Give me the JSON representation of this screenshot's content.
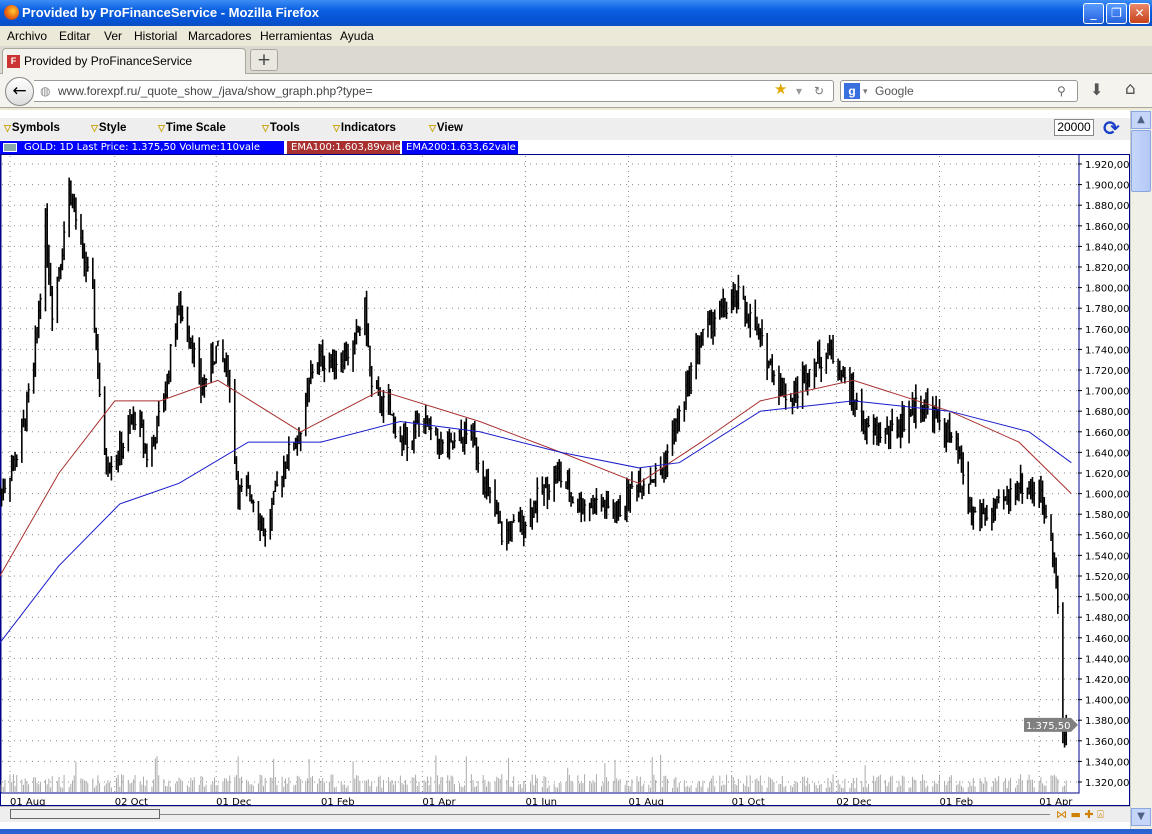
{
  "window": {
    "title": "Provided by ProFinanceService - Mozilla Firefox"
  },
  "menu": [
    "Archivo",
    "Editar",
    "Ver",
    "Historial",
    "Marcadores",
    "Herramientas",
    "Ayuda"
  ],
  "tab": {
    "label": "Provided by ProFinanceService"
  },
  "nav": {
    "url": "www.forexpf.ru/_quote_show_/java/show_graph.php?type=",
    "search_placeholder": "Google"
  },
  "toolbar": {
    "items": [
      "Symbols",
      "Style",
      "Time Scale",
      "Tools",
      "Indicators",
      "View"
    ],
    "zoom_value": "20000"
  },
  "legend": {
    "main": "GOLD: 1D Last Price: 1.375,50 Volume:110vale",
    "ema100": "EMA100:1.603,89vale",
    "ema200": "EMA200:1.633,62vale"
  },
  "colors": {
    "price": "#000000",
    "ema100": "#a83030",
    "ema200": "#1a1acc",
    "legend_bg": "#0000ff"
  },
  "chart_data": {
    "type": "line",
    "title": "GOLD: 1D",
    "last_price_label": "1.375,50",
    "ylim": [
      1320,
      1920
    ],
    "y_ticks": [
      "1.920,00",
      "1.900,00",
      "1.880,00",
      "1.860,00",
      "1.840,00",
      "1.820,00",
      "1.800,00",
      "1.780,00",
      "1.760,00",
      "1.740,00",
      "1.720,00",
      "1.700,00",
      "1.680,00",
      "1.660,00",
      "1.640,00",
      "1.620,00",
      "1.600,00",
      "1.580,00",
      "1.560,00",
      "1.540,00",
      "1.520,00",
      "1.500,00",
      "1.480,00",
      "1.460,00",
      "1.440,00",
      "1.420,00",
      "1.400,00",
      "1.380,00",
      "1.360,00",
      "1.340,00",
      "1.320,00"
    ],
    "x_ticks": [
      {
        "label": "01 Aug",
        "date": "2011-08-01"
      },
      {
        "label": "02 Oct",
        "date": "2011-10-02"
      },
      {
        "label": "01 Dec",
        "date": "2011-12-01"
      },
      {
        "label": "01 Feb",
        "date": "2012-02-01"
      },
      {
        "label": "01 Apr",
        "date": "2012-04-01"
      },
      {
        "label": "01 Jun",
        "date": "2012-06-01"
      },
      {
        "label": "01 Aug",
        "date": "2012-08-01"
      },
      {
        "label": "01 Oct",
        "date": "2012-10-01"
      },
      {
        "label": "02 Dec",
        "date": "2012-12-02"
      },
      {
        "label": "01 Feb",
        "date": "2013-02-01"
      },
      {
        "label": "01 Apr",
        "date": "2013-04-01"
      }
    ],
    "grid": true,
    "series": [
      {
        "name": "GOLD",
        "type": "ohlc",
        "points": [
          [
            "2011-07-26",
            1600
          ],
          [
            "2011-08-06",
            1640
          ],
          [
            "2011-08-15",
            1720
          ],
          [
            "2011-08-22",
            1860
          ],
          [
            "2011-08-26",
            1780
          ],
          [
            "2011-09-01",
            1840
          ],
          [
            "2011-09-05",
            1900
          ],
          [
            "2011-09-12",
            1840
          ],
          [
            "2011-09-19",
            1790
          ],
          [
            "2011-09-26",
            1630
          ],
          [
            "2011-10-05",
            1640
          ],
          [
            "2011-10-15",
            1680
          ],
          [
            "2011-10-22",
            1630
          ],
          [
            "2011-11-01",
            1700
          ],
          [
            "2011-11-08",
            1780
          ],
          [
            "2011-11-15",
            1760
          ],
          [
            "2011-11-22",
            1700
          ],
          [
            "2011-12-01",
            1740
          ],
          [
            "2011-12-08",
            1720
          ],
          [
            "2011-12-14",
            1600
          ],
          [
            "2011-12-22",
            1600
          ],
          [
            "2011-12-30",
            1560
          ],
          [
            "2012-01-10",
            1630
          ],
          [
            "2012-01-20",
            1660
          ],
          [
            "2012-01-28",
            1730
          ],
          [
            "2012-02-10",
            1730
          ],
          [
            "2012-02-20",
            1740
          ],
          [
            "2012-02-27",
            1780
          ],
          [
            "2012-03-02",
            1700
          ],
          [
            "2012-03-12",
            1680
          ],
          [
            "2012-03-20",
            1650
          ],
          [
            "2012-04-01",
            1670
          ],
          [
            "2012-04-15",
            1640
          ],
          [
            "2012-04-30",
            1660
          ],
          [
            "2012-05-10",
            1600
          ],
          [
            "2012-05-18",
            1560
          ],
          [
            "2012-05-30",
            1570
          ],
          [
            "2012-06-10",
            1600
          ],
          [
            "2012-06-20",
            1620
          ],
          [
            "2012-07-01",
            1590
          ],
          [
            "2012-07-15",
            1590
          ],
          [
            "2012-07-25",
            1580
          ],
          [
            "2012-08-05",
            1610
          ],
          [
            "2012-08-20",
            1620
          ],
          [
            "2012-09-01",
            1680
          ],
          [
            "2012-09-10",
            1740
          ],
          [
            "2012-09-20",
            1770
          ],
          [
            "2012-10-05",
            1790
          ],
          [
            "2012-10-15",
            1760
          ],
          [
            "2012-10-25",
            1720
          ],
          [
            "2012-11-05",
            1690
          ],
          [
            "2012-11-15",
            1720
          ],
          [
            "2012-11-28",
            1740
          ],
          [
            "2012-12-10",
            1700
          ],
          [
            "2012-12-20",
            1660
          ],
          [
            "2013-01-05",
            1660
          ],
          [
            "2013-01-20",
            1690
          ],
          [
            "2013-02-01",
            1670
          ],
          [
            "2013-02-12",
            1640
          ],
          [
            "2013-02-20",
            1580
          ],
          [
            "2013-03-05",
            1580
          ],
          [
            "2013-03-20",
            1610
          ],
          [
            "2013-04-01",
            1600
          ],
          [
            "2013-04-08",
            1570
          ],
          [
            "2013-04-12",
            1490
          ],
          [
            "2013-04-15",
            1360
          ],
          [
            "2013-04-17",
            1375.5
          ]
        ]
      },
      {
        "name": "EMA100",
        "points": [
          [
            "2011-07-26",
            1520
          ],
          [
            "2011-08-30",
            1620
          ],
          [
            "2011-10-02",
            1690
          ],
          [
            "2011-10-29",
            1690
          ],
          [
            "2011-12-02",
            1710
          ],
          [
            "2012-01-20",
            1660
          ],
          [
            "2012-03-07",
            1700
          ],
          [
            "2012-05-05",
            1670
          ],
          [
            "2012-06-22",
            1640
          ],
          [
            "2012-08-07",
            1610
          ],
          [
            "2012-09-13",
            1650
          ],
          [
            "2012-10-18",
            1690
          ],
          [
            "2012-12-12",
            1710
          ],
          [
            "2013-02-07",
            1680
          ],
          [
            "2013-03-20",
            1650
          ],
          [
            "2013-04-20",
            1600
          ]
        ]
      },
      {
        "name": "EMA200",
        "points": [
          [
            "2011-07-26",
            1455
          ],
          [
            "2011-08-30",
            1530
          ],
          [
            "2011-10-05",
            1590
          ],
          [
            "2011-11-09",
            1610
          ],
          [
            "2011-12-20",
            1650
          ],
          [
            "2012-02-01",
            1650
          ],
          [
            "2012-03-19",
            1670
          ],
          [
            "2012-05-05",
            1660
          ],
          [
            "2012-06-22",
            1640
          ],
          [
            "2012-08-07",
            1625
          ],
          [
            "2012-08-31",
            1630
          ],
          [
            "2012-10-18",
            1680
          ],
          [
            "2012-12-12",
            1690
          ],
          [
            "2013-02-07",
            1680
          ],
          [
            "2013-03-26",
            1660
          ],
          [
            "2013-04-20",
            1630
          ]
        ]
      }
    ]
  }
}
